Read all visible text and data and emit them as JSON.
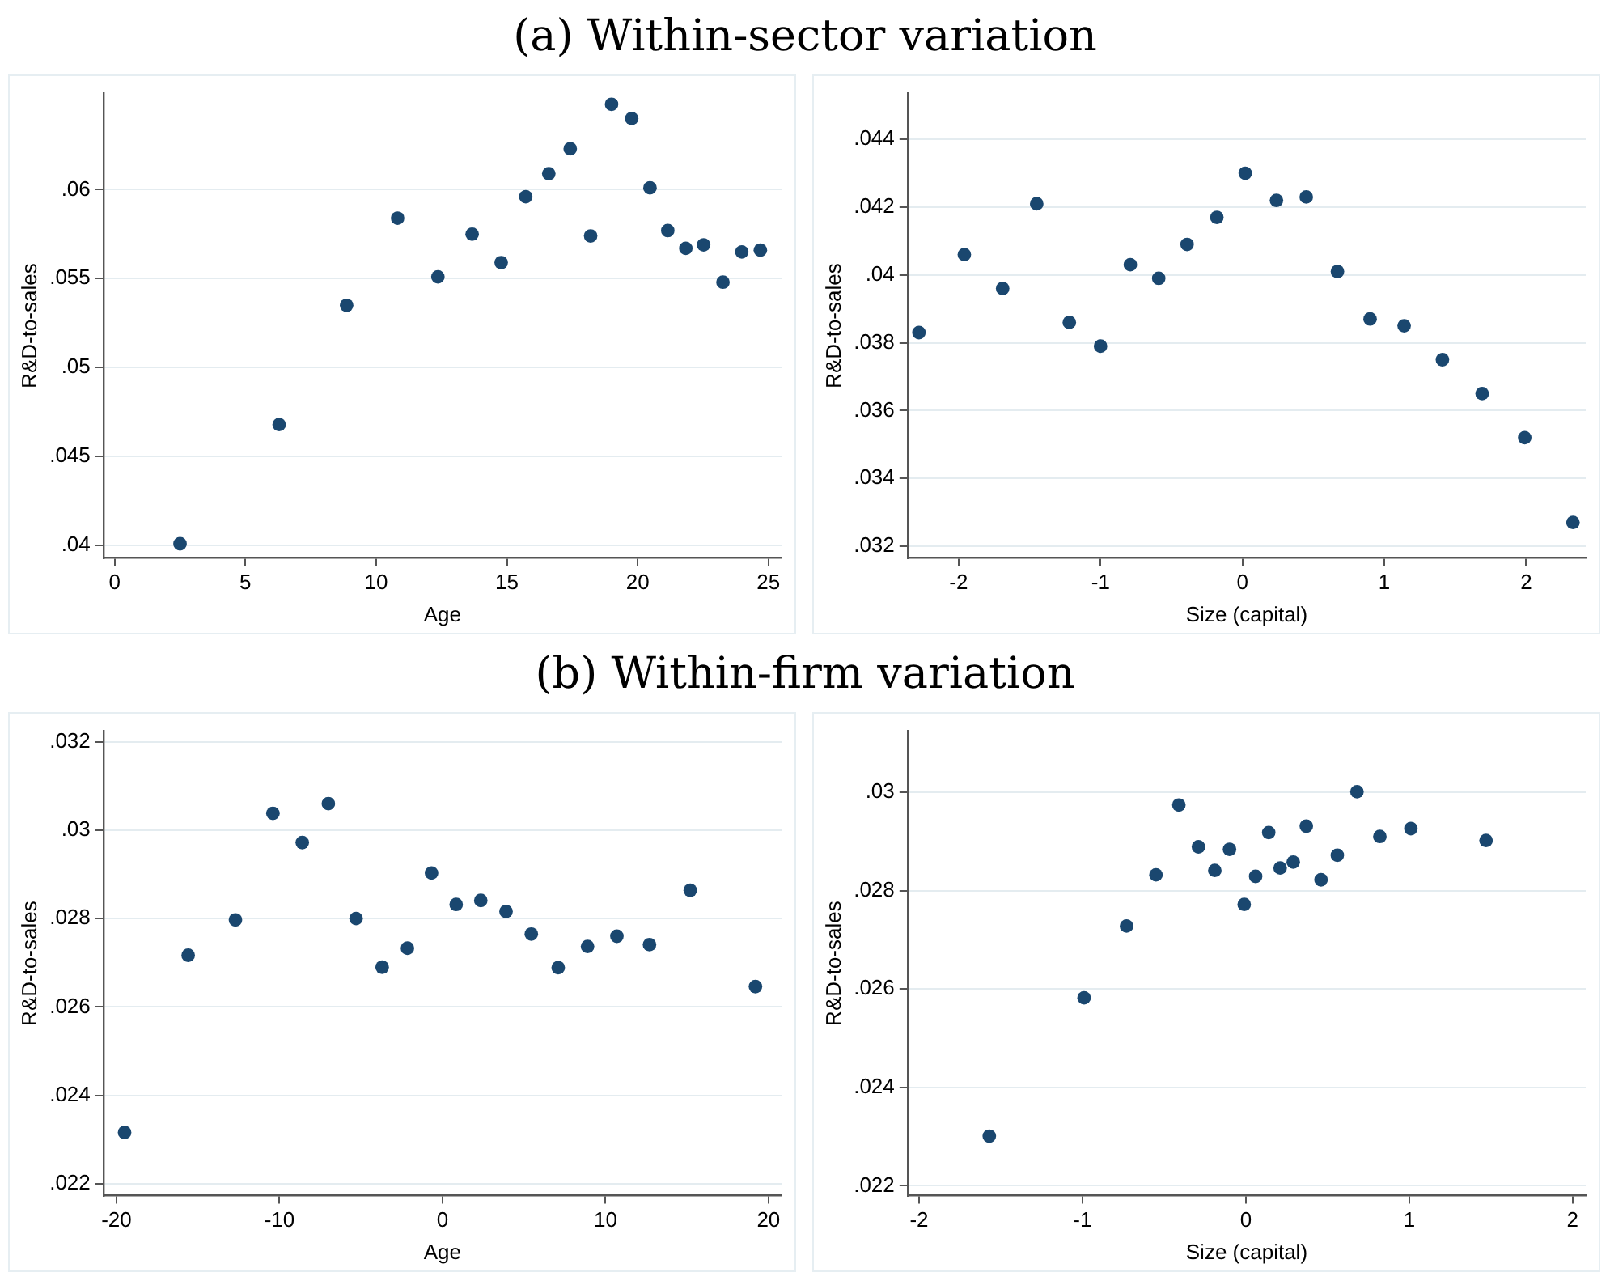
{
  "chart_data": [
    {
      "type": "scatter",
      "title": "(a) Within-sector variation",
      "xlabel": "Age",
      "ylabel": "R&D-to-sales",
      "color": "#1a476f",
      "marker": "circle",
      "grid": "y",
      "x": [
        2.5,
        6.29,
        8.87,
        10.82,
        12.36,
        13.67,
        14.78,
        15.72,
        16.6,
        17.42,
        18.2,
        19.0,
        19.77,
        20.47,
        21.15,
        21.84,
        22.52,
        23.26,
        23.98,
        24.69
      ],
      "values": [
        0.0401,
        0.0468,
        0.0535,
        0.0584,
        0.0551,
        0.0575,
        0.0559,
        0.0596,
        0.0609,
        0.0623,
        0.0574,
        0.0648,
        0.064,
        0.0601,
        0.0577,
        0.0567,
        0.0569,
        0.0548,
        0.0565,
        0.0566
      ],
      "xlim": [
        -0.43,
        25.5
      ],
      "xticks": [
        0,
        5,
        10,
        15,
        20,
        25
      ],
      "ylim": [
        0.0393,
        0.0654
      ],
      "yticks": [
        {
          "value": 0.04,
          "label": ".04"
        },
        {
          "value": 0.045,
          "label": ".045"
        },
        {
          "value": 0.05,
          "label": ".05"
        },
        {
          "value": 0.055,
          "label": ".055"
        },
        {
          "value": 0.06,
          "label": ".06"
        }
      ]
    },
    {
      "type": "scatter",
      "xlabel": "Size (capital)",
      "ylabel": "R&D-to-sales",
      "color": "#1a476f",
      "marker": "circle",
      "grid": "y",
      "x": [
        -2.28,
        -1.96,
        -1.69,
        -1.45,
        -1.22,
        -1.0,
        -0.79,
        -0.59,
        -0.39,
        -0.18,
        0.02,
        0.24,
        0.45,
        0.67,
        0.9,
        1.14,
        1.41,
        1.69,
        1.99,
        2.33
      ],
      "values": [
        0.0383,
        0.0406,
        0.0396,
        0.0421,
        0.0386,
        0.0379,
        0.0403,
        0.0399,
        0.0409,
        0.0417,
        0.043,
        0.0422,
        0.0423,
        0.0401,
        0.0387,
        0.0385,
        0.0375,
        0.0365,
        0.0352,
        0.0327
      ],
      "xlim": [
        -2.36,
        2.42
      ],
      "xticks": [
        -2,
        -1,
        0,
        1,
        2
      ],
      "ylim": [
        0.03165,
        0.04535
      ],
      "yticks": [
        {
          "value": 0.032,
          "label": ".032"
        },
        {
          "value": 0.034,
          "label": ".034"
        },
        {
          "value": 0.036,
          "label": ".036"
        },
        {
          "value": 0.038,
          "label": ".038"
        },
        {
          "value": 0.04,
          "label": ".04"
        },
        {
          "value": 0.042,
          "label": ".042"
        },
        {
          "value": 0.044,
          "label": ".044"
        }
      ]
    },
    {
      "type": "scatter",
      "title": "(b) Within-firm variation",
      "xlabel": "Age",
      "ylabel": "R&D-to-sales",
      "color": "#1a476f",
      "marker": "circle",
      "grid": "y",
      "x": [
        -19.5,
        -15.6,
        -12.7,
        -10.4,
        -8.6,
        -7.0,
        -5.3,
        -3.7,
        -2.15,
        -0.67,
        0.84,
        2.35,
        3.9,
        5.45,
        7.1,
        8.9,
        10.7,
        12.7,
        15.2,
        19.2
      ],
      "values": [
        0.02316,
        0.02717,
        0.02797,
        0.03038,
        0.02972,
        0.0306,
        0.028,
        0.0269,
        0.02733,
        0.02903,
        0.02832,
        0.02841,
        0.02816,
        0.02765,
        0.02689,
        0.02737,
        0.0276,
        0.02741,
        0.02864,
        0.02646
      ],
      "xlim": [
        -20.8,
        20.8
      ],
      "xticks": [
        -20,
        -10,
        0,
        10,
        20
      ],
      "ylim": [
        0.02173,
        0.03224
      ],
      "yticks": [
        {
          "value": 0.022,
          "label": ".022"
        },
        {
          "value": 0.024,
          "label": ".024"
        },
        {
          "value": 0.026,
          "label": ".026"
        },
        {
          "value": 0.028,
          "label": ".028"
        },
        {
          "value": 0.03,
          "label": ".03"
        },
        {
          "value": 0.032,
          "label": ".032"
        }
      ]
    },
    {
      "type": "scatter",
      "xlabel": "Size (capital)",
      "ylabel": "R&D-to-sales",
      "color": "#1a476f",
      "marker": "circle",
      "grid": "y",
      "x": [
        -1.57,
        -0.99,
        -0.73,
        -0.55,
        -0.41,
        -0.29,
        -0.19,
        -0.1,
        -0.01,
        0.06,
        0.14,
        0.21,
        0.29,
        0.37,
        0.46,
        0.56,
        0.68,
        0.82,
        1.01,
        1.47
      ],
      "values": [
        0.02301,
        0.02582,
        0.02728,
        0.02832,
        0.02974,
        0.02889,
        0.02841,
        0.02884,
        0.02772,
        0.02829,
        0.02918,
        0.02846,
        0.02858,
        0.02931,
        0.02822,
        0.02872,
        0.03001,
        0.0291,
        0.02926,
        0.02902
      ],
      "xlim": [
        -2.07,
        2.08
      ],
      "xticks": [
        -2,
        -1,
        0,
        1,
        2
      ],
      "ylim": [
        0.0218,
        0.03124
      ],
      "yticks": [
        {
          "value": 0.022,
          "label": ".022"
        },
        {
          "value": 0.024,
          "label": ".024"
        },
        {
          "value": 0.026,
          "label": ".026"
        },
        {
          "value": 0.028,
          "label": ".028"
        },
        {
          "value": 0.03,
          "label": ".03"
        }
      ]
    }
  ]
}
